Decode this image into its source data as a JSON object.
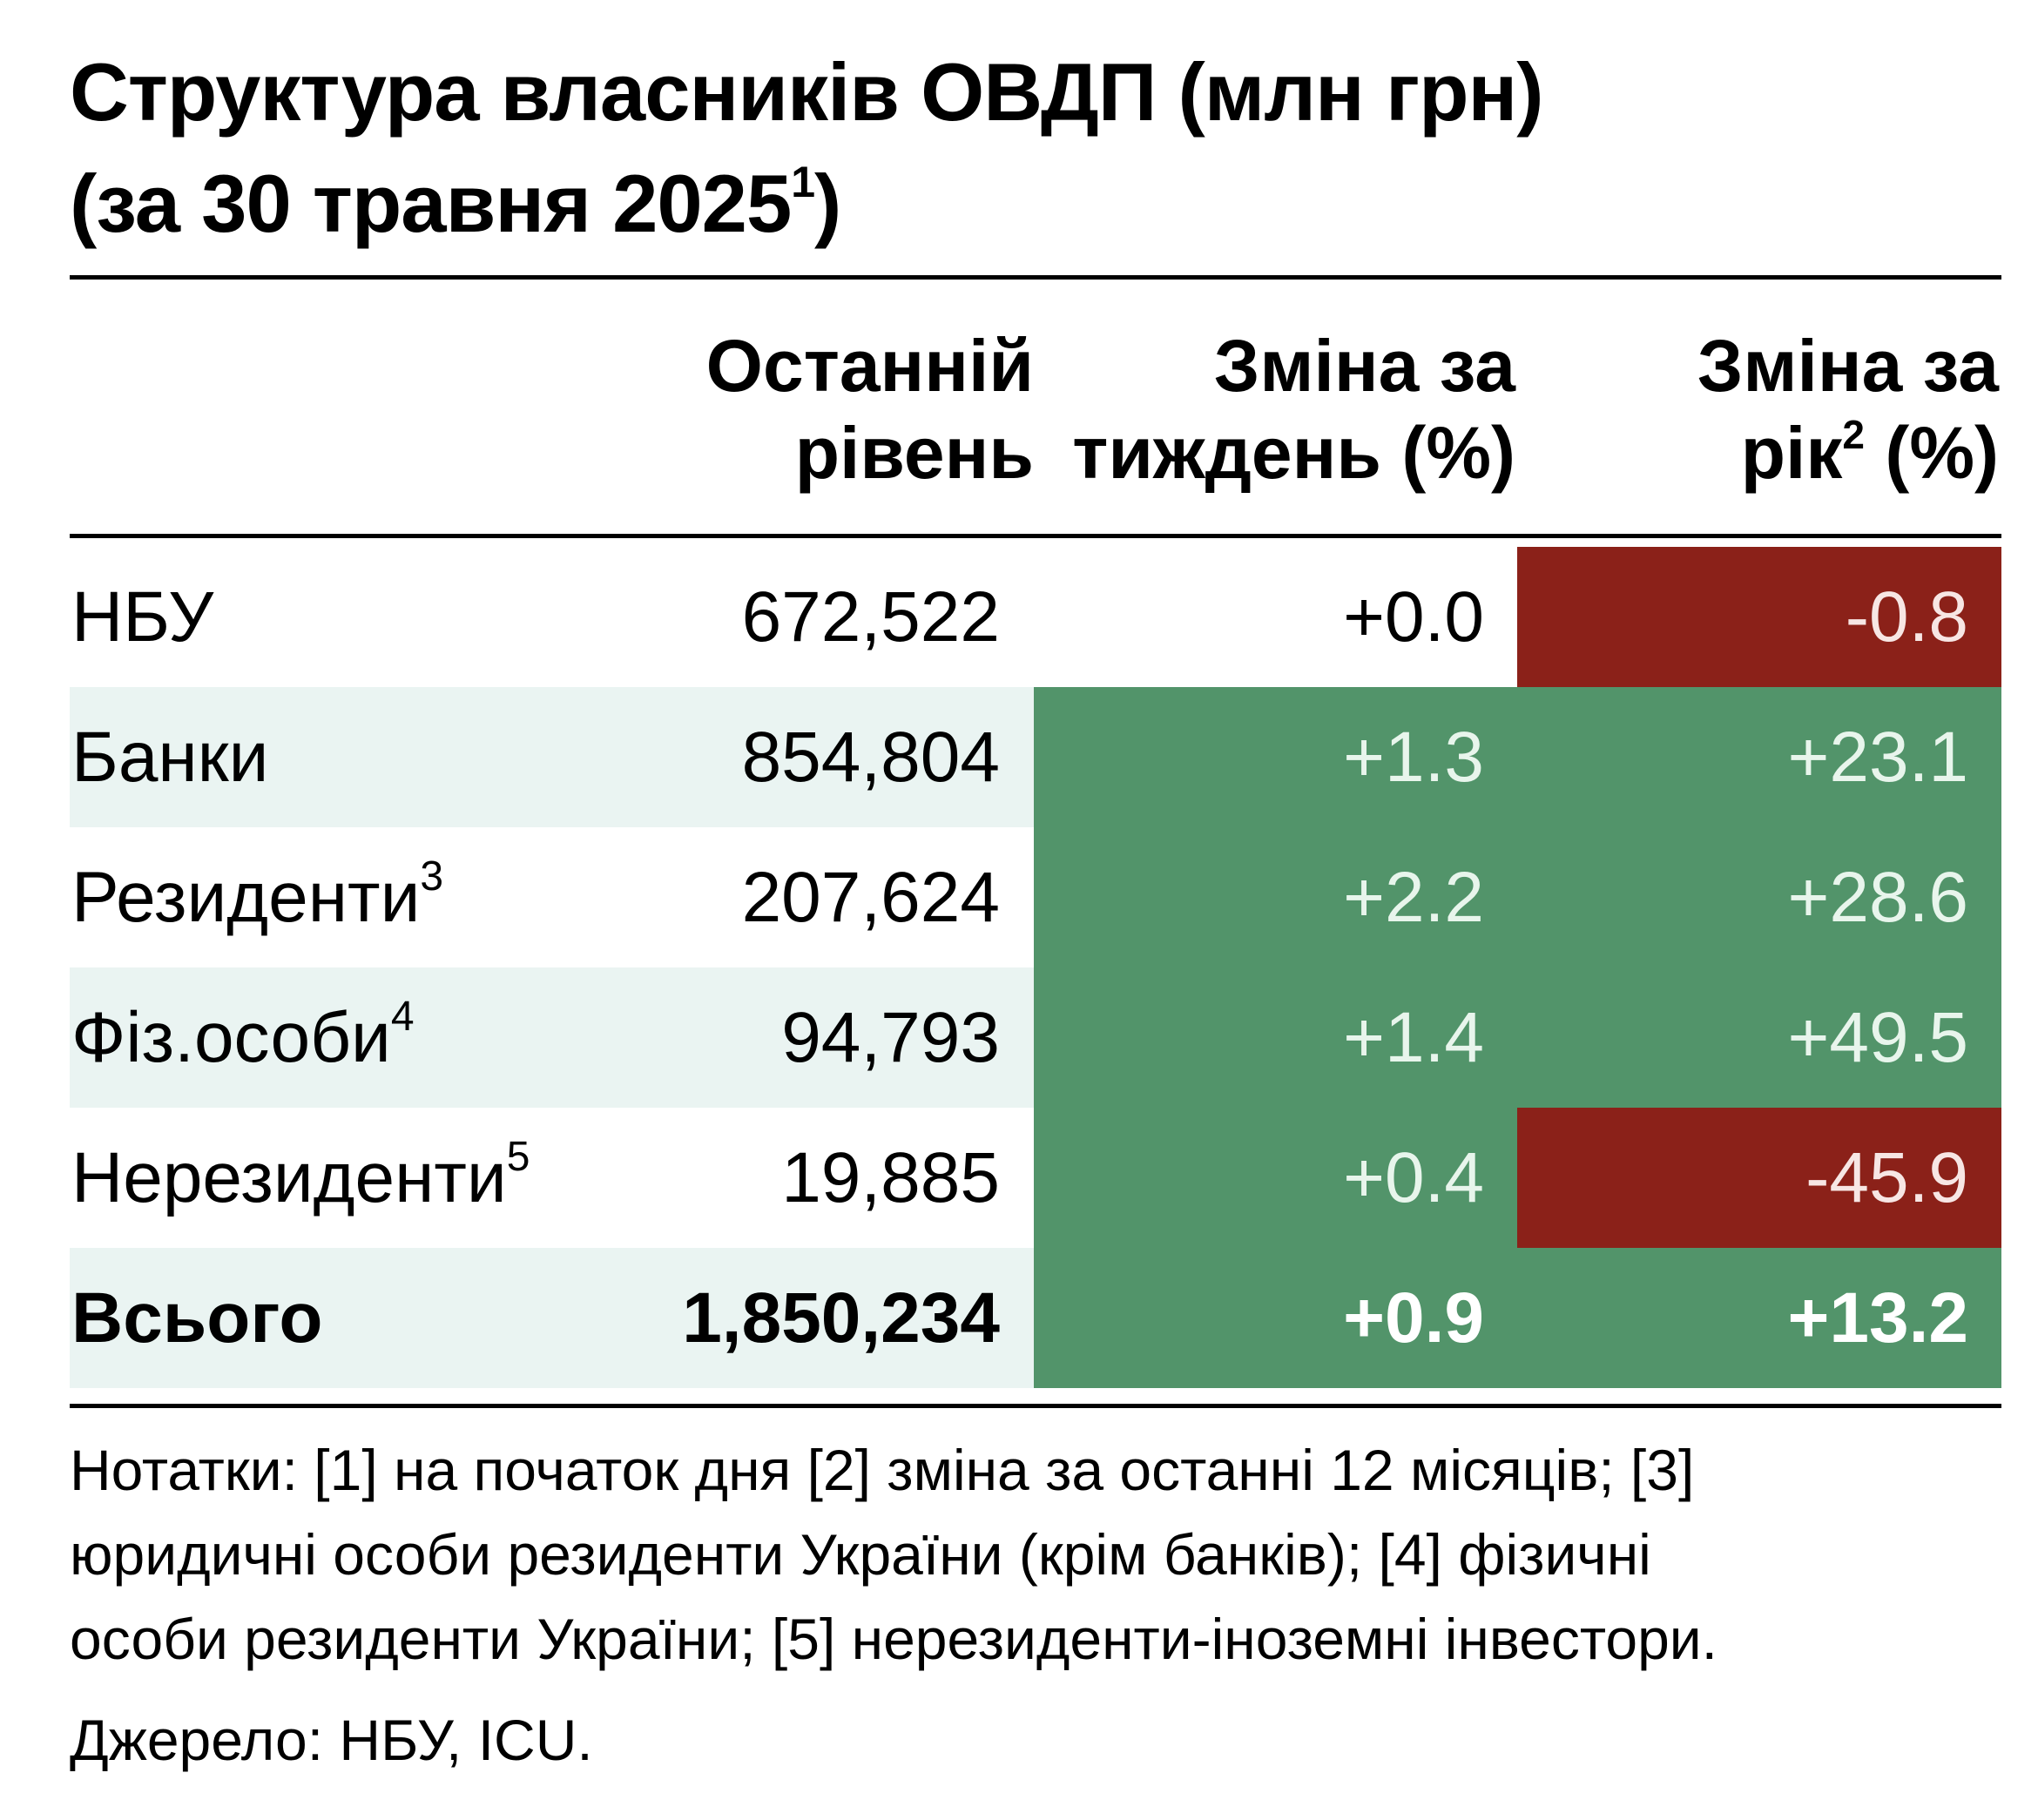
{
  "title": {
    "line1": "Структура власників ОВДП (млн грн)",
    "line2": "(за 30 травня 2025",
    "line2_sup": "1",
    "line2_end": ")"
  },
  "columns": {
    "level": {
      "line1": "Останній",
      "line2": "рівень"
    },
    "week": {
      "line1": "Зміна за",
      "line2": "тиждень (%)"
    },
    "year": {
      "line1": "Зміна за",
      "line2_pre": "рік",
      "line2_sup": "2",
      "line2_post": " (%)"
    }
  },
  "rows": [
    {
      "label": "НБУ",
      "sup": "",
      "level": "672,522",
      "week": "+0.0",
      "year": "-0.8"
    },
    {
      "label": "Банки",
      "sup": "",
      "level": "854,804",
      "week": "+1.3",
      "year": "+23.1"
    },
    {
      "label": "Резиденти",
      "sup": "3",
      "level": "207,624",
      "week": "+2.2",
      "year": "+28.6"
    },
    {
      "label": "Фіз.особи",
      "sup": "4",
      "level": "94,793",
      "week": "+1.4",
      "year": "+49.5"
    },
    {
      "label": "Нерезиденти",
      "sup": "5",
      "level": "19,885",
      "week": "+0.4",
      "year": "-45.9"
    }
  ],
  "total": {
    "label": "Всього",
    "level": "1,850,234",
    "week": "+0.9",
    "year": "+13.2"
  },
  "notes": {
    "line1": "Нотатки: [1] на початок дня [2] зміна за останні 12 місяців; [3]",
    "line2": "юридичні особи  резиденти України (крім банків); [4] фізичні",
    "line3": "особи резиденти України; [5] нерезиденти-іноземні інвестори."
  },
  "source": "Джерело: НБУ, ICU.",
  "colors": {
    "positive": "#52946a",
    "negative": "#8b2119",
    "shaded_row": "#eaf4f2"
  }
}
